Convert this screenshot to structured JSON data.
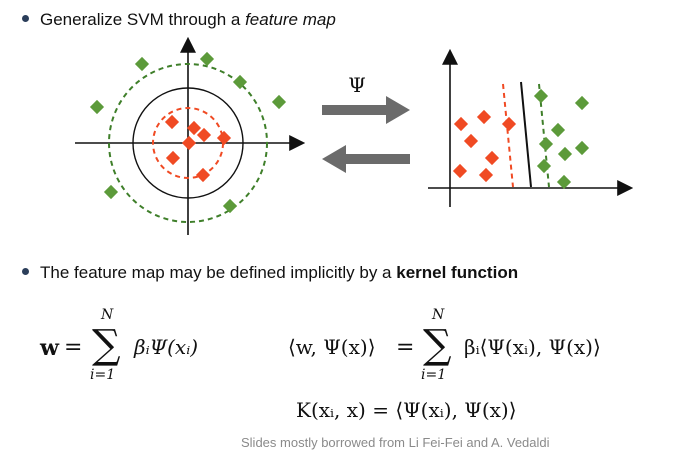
{
  "bullets": [
    {
      "prefix": "Generalize SVM through a ",
      "emphasis": "feature map",
      "suffix": ""
    },
    {
      "prefix": "The feature map may be defined implicitly by a ",
      "emphasis": "kernel function",
      "suffix": ""
    }
  ],
  "diagram": {
    "map_symbol": "Ψ",
    "colors": {
      "class_a": "#f04a23",
      "class_b": "#5c9a3a",
      "arrow": "#6b6b6b",
      "boundary_inner": "#f04a23",
      "boundary_outer": "#3f7f2a"
    }
  },
  "equations": {
    "eq1": {
      "lhs": "w",
      "equals": "=",
      "sum_upper": "N",
      "sum_lower": "i=1",
      "term": "βᵢΨ(xᵢ)"
    },
    "eq2": {
      "lhs": "⟨w, Ψ(x)⟩",
      "equals": "=",
      "sum_upper": "N",
      "sum_lower": "i=1",
      "term": "βᵢ⟨Ψ(xᵢ), Ψ(x)⟩"
    },
    "eq3": {
      "text": "K(xᵢ, x) = ⟨Ψ(xᵢ), Ψ(x)⟩"
    }
  },
  "footer": "Slides mostly borrowed from Li Fei-Fei and A. Vedaldi"
}
